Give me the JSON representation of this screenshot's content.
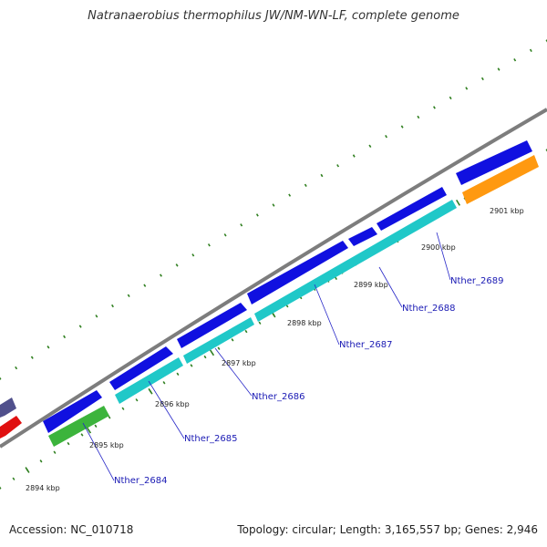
{
  "title": "Natranaerobius thermophilus JW/NM-WN-LF, complete genome",
  "footer": {
    "accession": "Accession: NC_010718",
    "topology": "Topology: circular; Length: 3,165,557 bp; Genes: 2,946"
  },
  "colors": {
    "backbone": "#7d7d7d",
    "tick": "#2f7f1f",
    "forward_gene": "#1010e0",
    "reverse_gene": "#20c8c8",
    "green_gene": "#3cb43c",
    "orange_gene": "#ff9910",
    "red_gene": "#e01010",
    "purple_gene": "#50508c",
    "gene_label": "#1a1ab4",
    "leader_line": "#2828c8"
  },
  "position_labels": [
    "2894 kbp",
    "2895 kbp",
    "2896 kbp",
    "2897 kbp",
    "2898 kbp",
    "2899 kbp",
    "2900 kbp",
    "2901 kbp"
  ],
  "gene_labels": [
    "Nther_2684",
    "Nther_2685",
    "Nther_2686",
    "Nther_2687",
    "Nther_2688",
    "Nther_2689"
  ]
}
